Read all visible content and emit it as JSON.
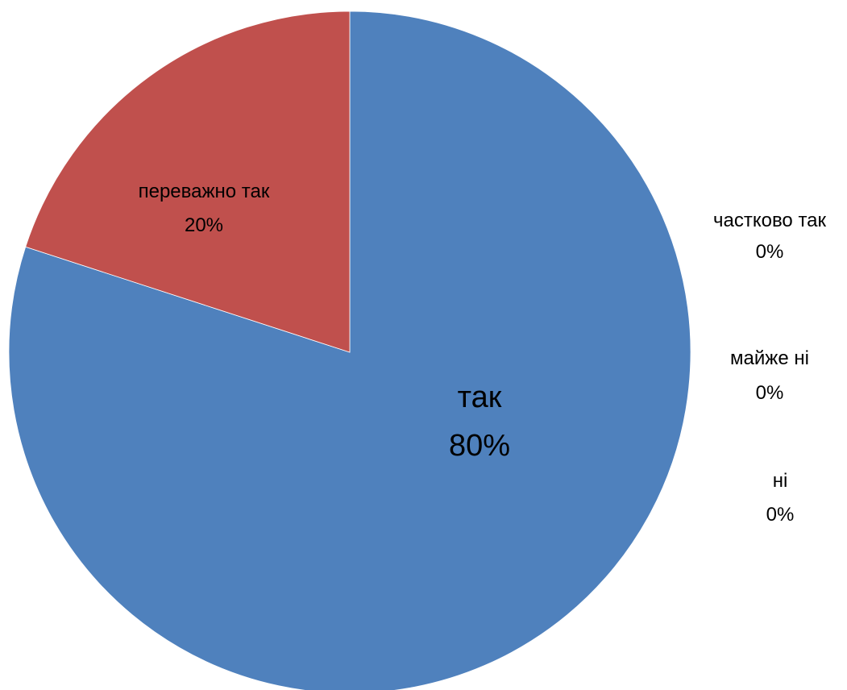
{
  "chart_data": {
    "type": "pie",
    "start_angle": "12 o'clock, clockwise",
    "slices": [
      {
        "label": "так",
        "value": 80,
        "value_label": "80%",
        "color": "#4F81BD"
      },
      {
        "label": "переважно так",
        "value": 20,
        "value_label": "20%",
        "color": "#C0504D"
      },
      {
        "label": "частково так",
        "value": 0,
        "value_label": "0%",
        "color": "#9BBB59"
      },
      {
        "label": "майже ні",
        "value": 0,
        "value_label": "0%",
        "color": "#8064A2"
      },
      {
        "label": "ні",
        "value": 0,
        "value_label": "0%",
        "color": "#4BACC6"
      }
    ]
  }
}
